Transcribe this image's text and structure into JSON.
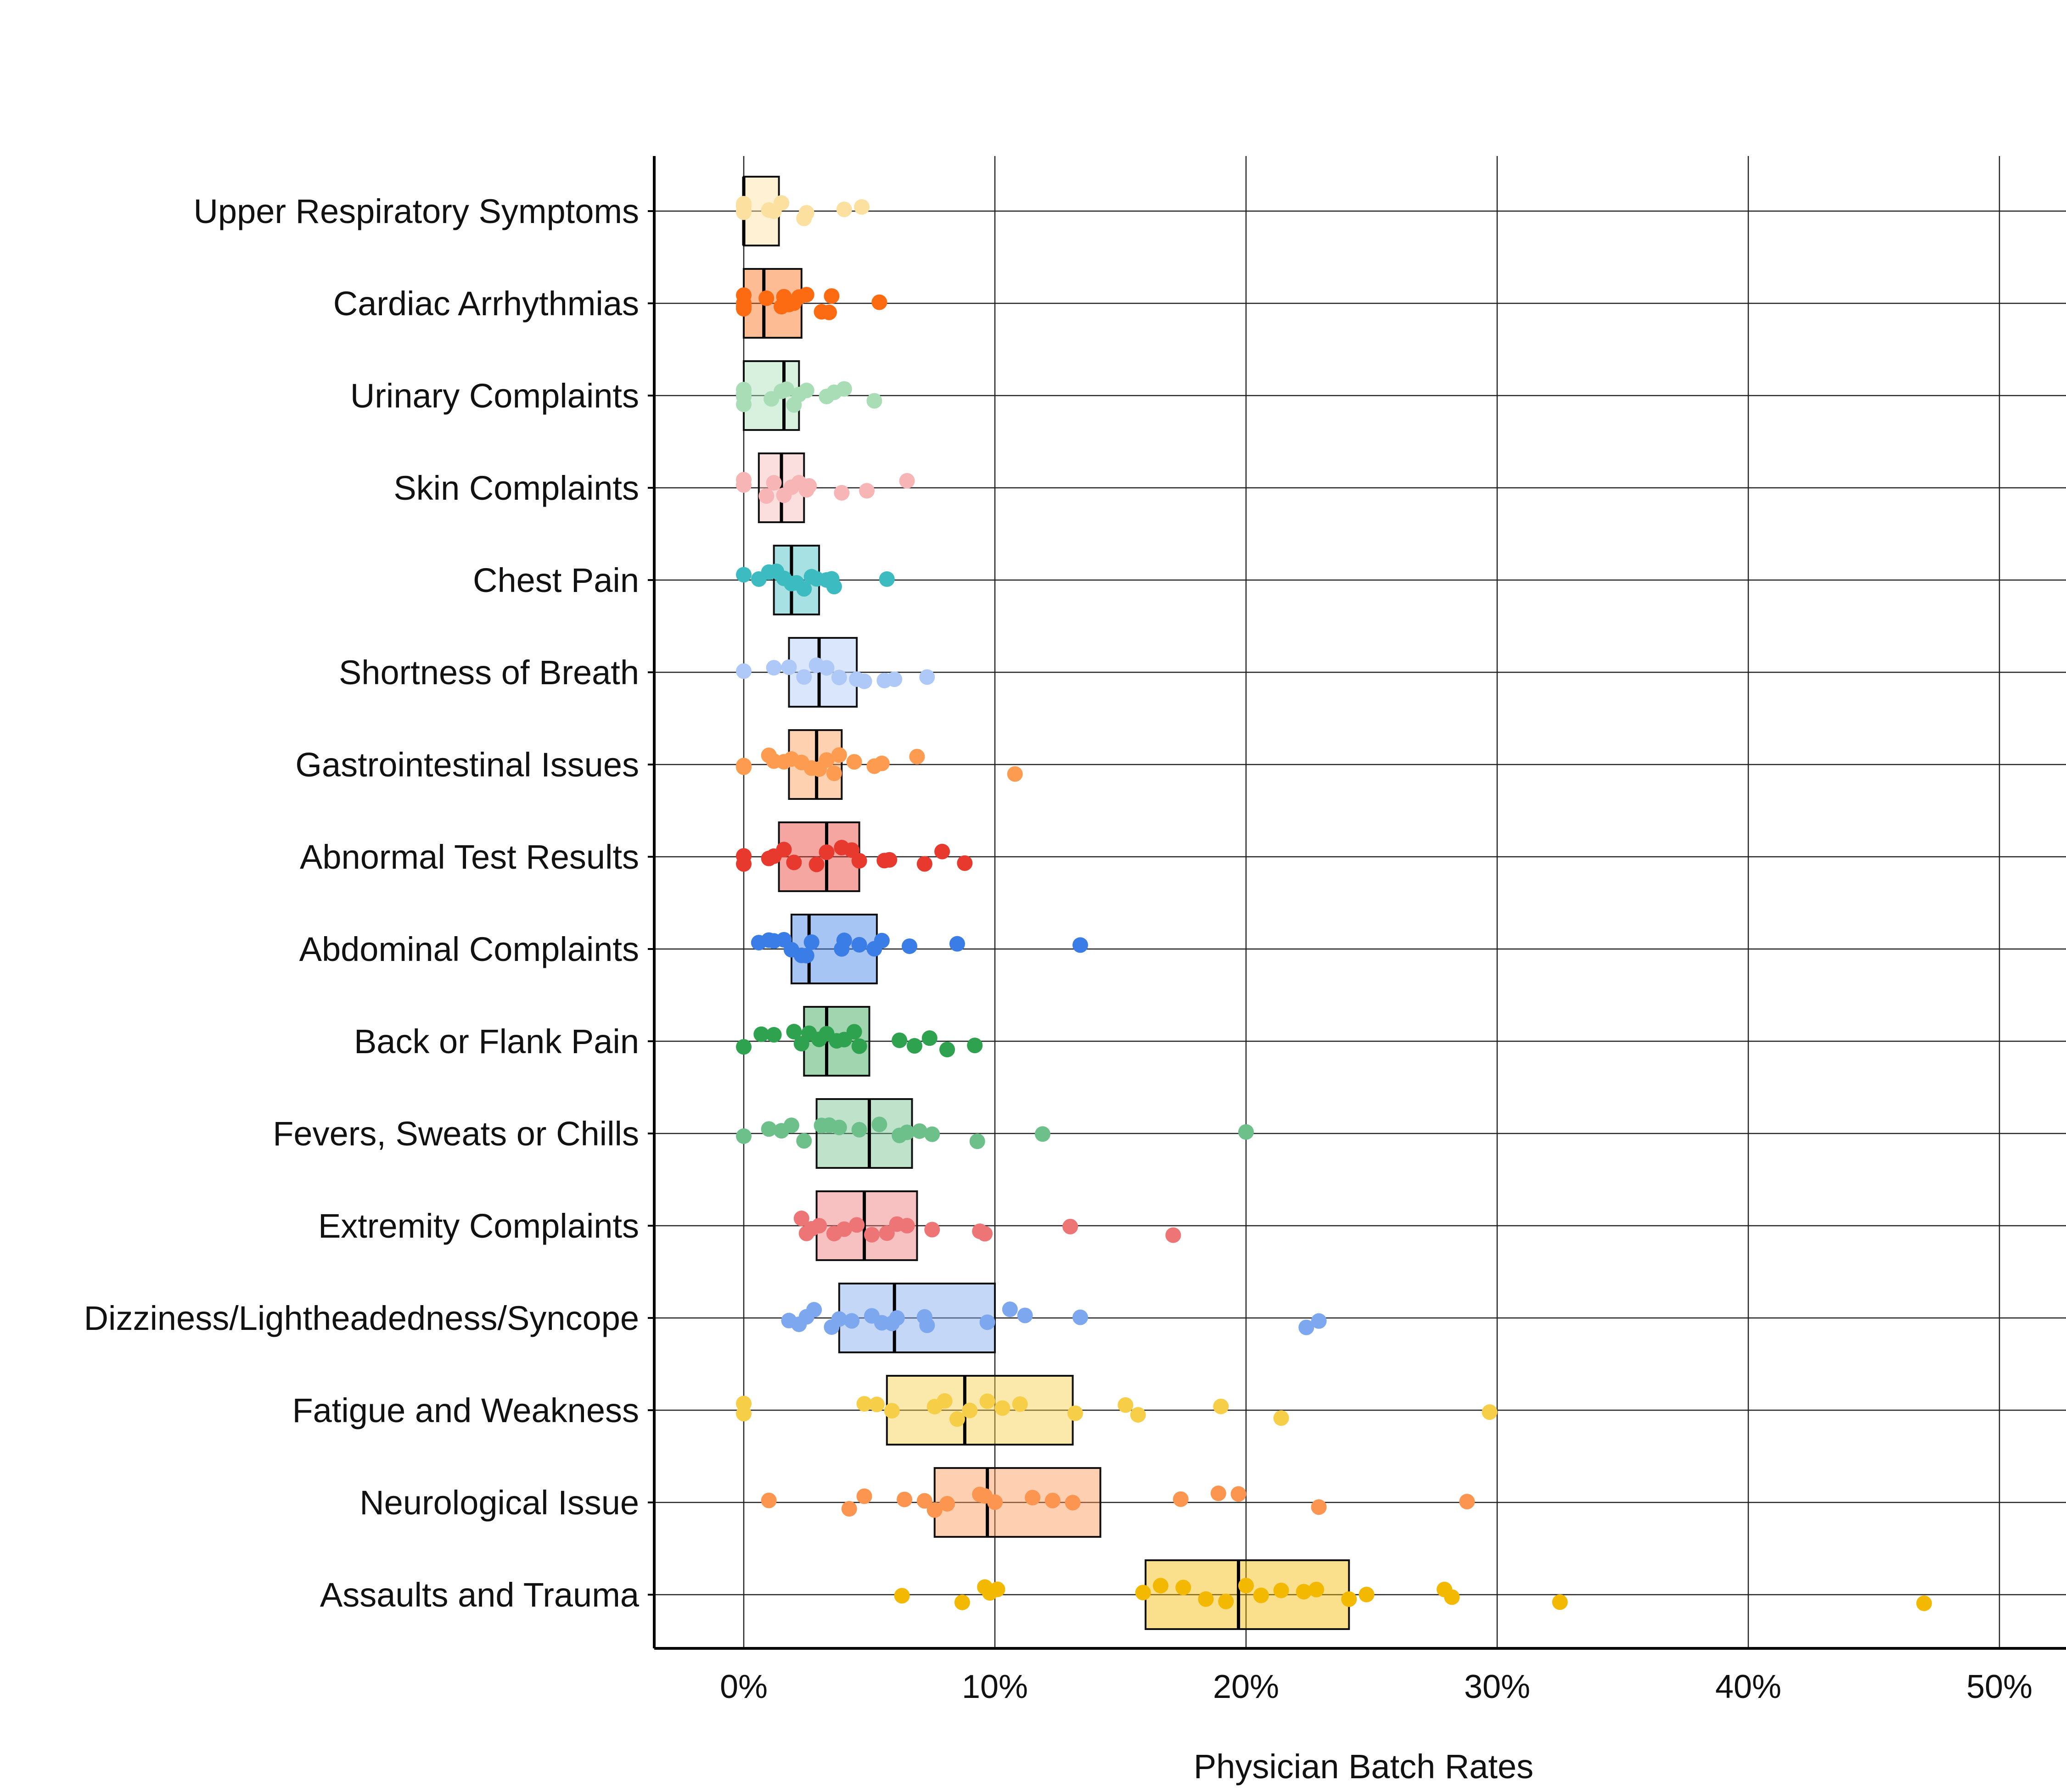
{
  "chart_data": {
    "type": "box",
    "orientation": "horizontal",
    "title": "",
    "xlabel": "Physician Batch Rates",
    "ylabel": "",
    "xlim": [
      -3.5,
      52.5
    ],
    "x_ticks": [
      0,
      10,
      20,
      30,
      40,
      50
    ],
    "x_tick_labels": [
      "0%",
      "10%",
      "20%",
      "30%",
      "40%",
      "50%"
    ],
    "grid": true,
    "legend": "none",
    "categories": [
      {
        "name": "Upper Respiratory Symptoms",
        "color": "#FCE0A0",
        "box": {
          "q1": 0.0,
          "median": 0.0,
          "q3": 1.4
        },
        "points": [
          0,
          0,
          0,
          0,
          1.0,
          1.2,
          1.5,
          2.4,
          2.5,
          4.0,
          4.7
        ]
      },
      {
        "name": "Cardiac Arrhythmias",
        "color": "#FC6B12",
        "box": {
          "q1": 0.0,
          "median": 0.8,
          "q3": 2.3
        },
        "points": [
          0,
          0,
          0,
          0,
          0.9,
          1.5,
          1.6,
          1.8,
          2.0,
          2.2,
          2.5,
          3.1,
          3.4,
          3.5,
          5.4
        ]
      },
      {
        "name": "Urinary Complaints",
        "color": "#A8DDB5",
        "box": {
          "q1": 0.0,
          "median": 1.6,
          "q3": 2.2
        },
        "points": [
          0,
          0,
          0,
          0,
          1.1,
          1.5,
          1.7,
          2.0,
          2.2,
          2.5,
          3.3,
          3.6,
          4.0,
          5.2
        ]
      },
      {
        "name": "Skin Complaints",
        "color": "#F7B5B5",
        "box": {
          "q1": 0.6,
          "median": 1.5,
          "q3": 2.4
        },
        "points": [
          0,
          0,
          0,
          0.9,
          1.2,
          1.6,
          1.9,
          2.2,
          2.5,
          2.6,
          3.9,
          4.9,
          6.5
        ]
      },
      {
        "name": "Chest Pain",
        "color": "#3CBCC0",
        "box": {
          "q1": 1.2,
          "median": 1.9,
          "q3": 3.0
        },
        "points": [
          0,
          0.6,
          1.0,
          1.3,
          1.6,
          1.9,
          2.1,
          2.4,
          2.7,
          2.9,
          3.3,
          3.5,
          3.6,
          5.7
        ]
      },
      {
        "name": "Shortness of Breath",
        "color": "#AEC8F7",
        "box": {
          "q1": 1.8,
          "median": 3.0,
          "q3": 4.5
        },
        "points": [
          0,
          1.2,
          1.8,
          2.4,
          2.9,
          3.3,
          3.8,
          4.5,
          4.8,
          5.6,
          6.0,
          7.3
        ]
      },
      {
        "name": "Gastrointestinal Issues",
        "color": "#FD9C50",
        "box": {
          "q1": 1.8,
          "median": 2.9,
          "q3": 3.9
        },
        "points": [
          0,
          0,
          1.0,
          1.2,
          1.6,
          1.9,
          2.3,
          2.7,
          3.0,
          3.3,
          3.6,
          3.8,
          4.4,
          5.2,
          5.5,
          6.9,
          10.8
        ]
      },
      {
        "name": "Abnormal Test Results",
        "color": "#E8392E",
        "box": {
          "q1": 1.4,
          "median": 3.3,
          "q3": 4.6
        },
        "points": [
          0,
          0,
          1.0,
          1.2,
          1.6,
          2.0,
          2.9,
          3.3,
          3.9,
          4.3,
          4.6,
          5.6,
          5.8,
          7.2,
          7.9,
          8.8
        ]
      },
      {
        "name": "Abdominal Complaints",
        "color": "#3A7DE6",
        "box": {
          "q1": 1.9,
          "median": 2.6,
          "q3": 5.3
        },
        "points": [
          0.6,
          1.0,
          1.2,
          1.6,
          1.9,
          2.3,
          2.5,
          2.7,
          3.9,
          4.0,
          4.6,
          5.2,
          5.5,
          6.6,
          8.5,
          13.4
        ]
      },
      {
        "name": "Back or Flank Pain",
        "color": "#2EA24E",
        "box": {
          "q1": 2.4,
          "median": 3.3,
          "q3": 5.0
        },
        "points": [
          0,
          0.7,
          1.2,
          2.0,
          2.3,
          2.6,
          3.0,
          3.3,
          3.7,
          4.0,
          4.4,
          4.6,
          6.2,
          6.8,
          7.4,
          8.1,
          9.2
        ]
      },
      {
        "name": "Fevers, Sweats or Chills",
        "color": "#6EC08A",
        "box": {
          "q1": 2.9,
          "median": 5.0,
          "q3": 6.7
        },
        "points": [
          0,
          1.0,
          1.5,
          1.9,
          2.4,
          3.1,
          3.4,
          3.8,
          4.6,
          5.4,
          6.2,
          6.5,
          7.0,
          7.5,
          9.3,
          11.9,
          20.0
        ]
      },
      {
        "name": "Extremity Complaints",
        "color": "#EE7575",
        "box": {
          "q1": 2.9,
          "median": 4.8,
          "q3": 6.9
        },
        "points": [
          2.3,
          2.5,
          2.7,
          3.0,
          3.6,
          4.0,
          4.5,
          5.1,
          5.7,
          6.1,
          6.5,
          7.5,
          9.4,
          9.6,
          13.0,
          17.1
        ]
      },
      {
        "name": "Dizziness/Lightheadedness/Syncope",
        "color": "#7DA7EE",
        "box": {
          "q1": 3.8,
          "median": 6.0,
          "q3": 10.0
        },
        "points": [
          1.8,
          2.2,
          2.5,
          2.8,
          3.5,
          3.8,
          4.3,
          5.1,
          5.5,
          5.9,
          6.1,
          7.2,
          7.3,
          9.7,
          10.6,
          11.2,
          13.4,
          22.4,
          22.9
        ]
      },
      {
        "name": "Fatigue and Weakness",
        "color": "#F7CE48",
        "box": {
          "q1": 5.7,
          "median": 8.8,
          "q3": 13.1
        },
        "points": [
          0,
          0,
          4.8,
          5.3,
          5.9,
          7.6,
          8.0,
          8.5,
          9.0,
          9.7,
          10.3,
          11.0,
          13.2,
          15.2,
          15.7,
          19.0,
          21.4,
          29.7
        ]
      },
      {
        "name": "Neurological Issue",
        "color": "#FC9550",
        "box": {
          "q1": 7.6,
          "median": 9.7,
          "q3": 14.2
        },
        "points": [
          1.0,
          4.2,
          4.8,
          6.4,
          7.2,
          7.6,
          8.1,
          9.4,
          9.6,
          10.0,
          11.5,
          12.3,
          13.1,
          17.4,
          18.9,
          19.7,
          22.9,
          28.8
        ]
      },
      {
        "name": "Assaults and Trauma",
        "color": "#F3B800",
        "box": {
          "q1": 16.0,
          "median": 19.7,
          "q3": 24.1
        },
        "points": [
          6.3,
          8.7,
          9.6,
          9.8,
          10.1,
          15.9,
          16.6,
          17.5,
          18.4,
          19.2,
          20.0,
          20.6,
          21.4,
          22.3,
          22.8,
          24.1,
          24.8,
          27.9,
          28.2,
          32.5,
          47.0
        ]
      }
    ]
  }
}
